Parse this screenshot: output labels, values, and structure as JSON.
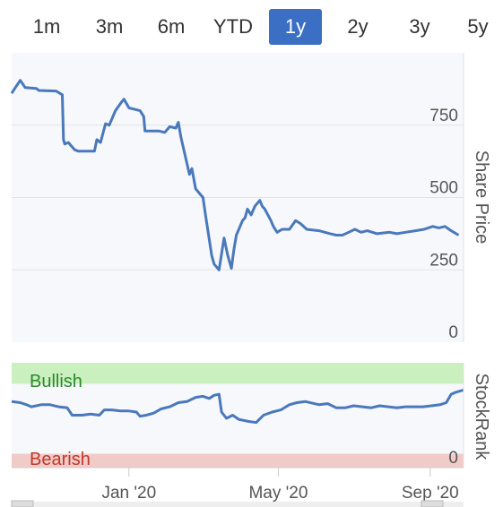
{
  "range_tabs": {
    "items": [
      "1m",
      "3m",
      "6m",
      "YTD",
      "1y",
      "2y",
      "3y",
      "5y"
    ],
    "active": "1y"
  },
  "colors": {
    "accent": "#3b6fc4",
    "line": "#4a78bd",
    "bullish_band": "#c9f0be",
    "bearish_band": "#f1cbc7",
    "bullish_text": "#2b8a2b",
    "bearish_text": "#c0392b",
    "plot_bg": "#f6f8fb"
  },
  "chart_data": [
    {
      "type": "line",
      "title": "",
      "ylabel": "Share Price",
      "ylim": [
        0,
        1000
      ],
      "yticks": [
        0,
        250,
        500,
        750
      ],
      "xlim": [
        "2019-09-28",
        "2020-09-28"
      ],
      "xticks": [
        {
          "date": "2020-01-01",
          "label": "Jan '20"
        },
        {
          "date": "2020-05-01",
          "label": "May '20"
        },
        {
          "date": "2020-09-01",
          "label": "Sep '20"
        }
      ],
      "grid": true,
      "series": [
        {
          "values": [
            [
              "2019-09-28",
              860
            ],
            [
              "2019-10-01",
              880
            ],
            [
              "2019-10-05",
              905
            ],
            [
              "2019-10-09",
              880
            ],
            [
              "2019-10-18",
              877
            ],
            [
              "2019-10-20",
              870
            ],
            [
              "2019-11-03",
              868
            ],
            [
              "2019-11-08",
              855
            ],
            [
              "2019-11-09",
              700
            ],
            [
              "2019-11-10",
              685
            ],
            [
              "2019-11-13",
              690
            ],
            [
              "2019-11-18",
              665
            ],
            [
              "2019-11-21",
              660
            ],
            [
              "2019-12-04",
              660
            ],
            [
              "2019-12-06",
              700
            ],
            [
              "2019-12-09",
              690
            ],
            [
              "2019-12-13",
              755
            ],
            [
              "2019-12-16",
              750
            ],
            [
              "2019-12-21",
              800
            ],
            [
              "2019-12-26",
              830
            ],
            [
              "2019-12-28",
              840
            ],
            [
              "2020-01-01",
              810
            ],
            [
              "2020-01-10",
              800
            ],
            [
              "2020-01-13",
              780
            ],
            [
              "2020-01-14",
              730
            ],
            [
              "2020-01-25",
              730
            ],
            [
              "2020-01-30",
              725
            ],
            [
              "2020-02-03",
              745
            ],
            [
              "2020-02-08",
              740
            ],
            [
              "2020-02-10",
              760
            ],
            [
              "2020-02-12",
              710
            ],
            [
              "2020-02-19",
              580
            ],
            [
              "2020-02-21",
              600
            ],
            [
              "2020-02-24",
              530
            ],
            [
              "2020-03-01",
              500
            ],
            [
              "2020-03-03",
              440
            ],
            [
              "2020-03-08",
              300
            ],
            [
              "2020-03-10",
              270
            ],
            [
              "2020-03-14",
              250
            ],
            [
              "2020-03-18",
              360
            ],
            [
              "2020-03-21",
              300
            ],
            [
              "2020-03-24",
              255
            ],
            [
              "2020-03-26",
              320
            ],
            [
              "2020-03-28",
              370
            ],
            [
              "2020-04-02",
              420
            ],
            [
              "2020-04-04",
              430
            ],
            [
              "2020-04-06",
              460
            ],
            [
              "2020-04-09",
              440
            ],
            [
              "2020-04-12",
              470
            ],
            [
              "2020-04-16",
              490
            ],
            [
              "2020-04-18",
              470
            ],
            [
              "2020-04-20",
              460
            ],
            [
              "2020-04-25",
              420
            ],
            [
              "2020-04-27",
              400
            ],
            [
              "2020-04-30",
              380
            ],
            [
              "2020-05-04",
              390
            ],
            [
              "2020-05-10",
              390
            ],
            [
              "2020-05-15",
              420
            ],
            [
              "2020-05-19",
              410
            ],
            [
              "2020-05-24",
              390
            ],
            [
              "2020-06-03",
              385
            ],
            [
              "2020-06-12",
              375
            ],
            [
              "2020-06-17",
              370
            ],
            [
              "2020-06-22",
              370
            ],
            [
              "2020-06-27",
              380
            ],
            [
              "2020-07-02",
              390
            ],
            [
              "2020-07-07",
              380
            ],
            [
              "2020-07-12",
              385
            ],
            [
              "2020-07-20",
              375
            ],
            [
              "2020-07-30",
              380
            ],
            [
              "2020-08-05",
              375
            ],
            [
              "2020-08-12",
              380
            ],
            [
              "2020-08-20",
              385
            ],
            [
              "2020-08-27",
              390
            ],
            [
              "2020-09-03",
              400
            ],
            [
              "2020-09-08",
              395
            ],
            [
              "2020-09-13",
              400
            ],
            [
              "2020-09-18",
              385
            ],
            [
              "2020-09-24",
              370
            ]
          ]
        }
      ]
    },
    {
      "type": "line",
      "title": "",
      "ylabel": "StockRank",
      "ylim": [
        0,
        100
      ],
      "yticks": [
        0
      ],
      "bands": [
        {
          "label": "Bullish",
          "from": 80,
          "to": 100
        },
        {
          "label": "Bearish",
          "from": 0,
          "to": 20
        }
      ],
      "series": [
        {
          "values": [
            [
              "2019-09-28",
              63
            ],
            [
              "2019-10-05",
              62
            ],
            [
              "2019-10-10",
              60
            ],
            [
              "2019-10-14",
              58
            ],
            [
              "2019-10-22",
              60
            ],
            [
              "2019-10-29",
              60
            ],
            [
              "2019-11-05",
              58
            ],
            [
              "2019-11-12",
              57
            ],
            [
              "2019-11-16",
              50
            ],
            [
              "2019-11-24",
              50
            ],
            [
              "2019-12-01",
              51
            ],
            [
              "2019-12-08",
              50
            ],
            [
              "2019-12-12",
              55
            ],
            [
              "2019-12-18",
              55
            ],
            [
              "2019-12-25",
              54
            ],
            [
              "2020-01-01",
              54
            ],
            [
              "2020-01-07",
              53
            ],
            [
              "2020-01-10",
              49
            ],
            [
              "2020-01-15",
              50
            ],
            [
              "2020-01-21",
              52
            ],
            [
              "2020-01-27",
              56
            ],
            [
              "2020-02-03",
              58
            ],
            [
              "2020-02-10",
              62
            ],
            [
              "2020-02-17",
              63
            ],
            [
              "2020-02-24",
              67
            ],
            [
              "2020-03-01",
              68
            ],
            [
              "2020-03-06",
              66
            ],
            [
              "2020-03-10",
              69
            ],
            [
              "2020-03-14",
              70
            ],
            [
              "2020-03-16",
              53
            ],
            [
              "2020-03-20",
              47
            ],
            [
              "2020-03-25",
              50
            ],
            [
              "2020-03-30",
              46
            ],
            [
              "2020-04-07",
              44
            ],
            [
              "2020-04-13",
              43
            ],
            [
              "2020-04-19",
              50
            ],
            [
              "2020-04-26",
              53
            ],
            [
              "2020-05-03",
              55
            ],
            [
              "2020-05-10",
              60
            ],
            [
              "2020-05-16",
              62
            ],
            [
              "2020-05-23",
              63
            ],
            [
              "2020-06-03",
              60
            ],
            [
              "2020-06-10",
              61
            ],
            [
              "2020-06-17",
              57
            ],
            [
              "2020-06-24",
              57
            ],
            [
              "2020-07-01",
              59
            ],
            [
              "2020-07-08",
              58
            ],
            [
              "2020-07-15",
              57
            ],
            [
              "2020-07-22",
              59
            ],
            [
              "2020-07-29",
              58
            ],
            [
              "2020-08-05",
              57
            ],
            [
              "2020-08-12",
              58
            ],
            [
              "2020-08-19",
              58
            ],
            [
              "2020-08-26",
              58
            ],
            [
              "2020-09-02",
              59
            ],
            [
              "2020-09-09",
              60
            ],
            [
              "2020-09-14",
              62
            ],
            [
              "2020-09-18",
              70
            ],
            [
              "2020-09-22",
              72
            ],
            [
              "2020-09-28",
              74
            ]
          ]
        }
      ]
    }
  ]
}
